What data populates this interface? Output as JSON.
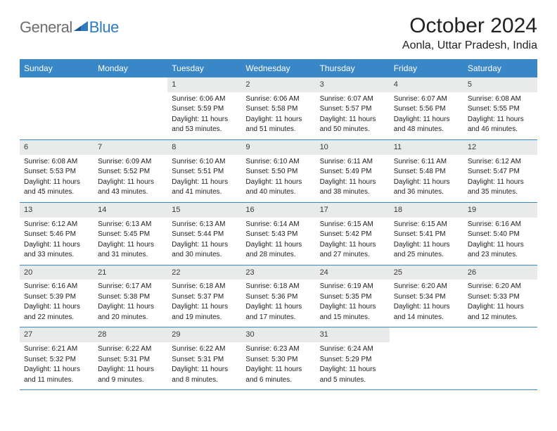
{
  "logo": {
    "text_general": "General",
    "text_blue": "Blue"
  },
  "title": "October 2024",
  "location": "Aonla, Uttar Pradesh, India",
  "colors": {
    "header_bar": "#3a87c8",
    "day_number_bg": "#e9eaea",
    "logo_gray": "#6d6e71",
    "logo_blue": "#2f7bbf",
    "text": "#222222",
    "background": "#ffffff"
  },
  "typography": {
    "title_fontsize": 30,
    "location_fontsize": 16,
    "weekday_fontsize": 12,
    "cell_fontsize": 10
  },
  "weekdays": [
    "Sunday",
    "Monday",
    "Tuesday",
    "Wednesday",
    "Thursday",
    "Friday",
    "Saturday"
  ],
  "weeks": [
    [
      null,
      null,
      {
        "n": "1",
        "sunrise": "Sunrise: 6:06 AM",
        "sunset": "Sunset: 5:59 PM",
        "day1": "Daylight: 11 hours",
        "day2": "and 53 minutes."
      },
      {
        "n": "2",
        "sunrise": "Sunrise: 6:06 AM",
        "sunset": "Sunset: 5:58 PM",
        "day1": "Daylight: 11 hours",
        "day2": "and 51 minutes."
      },
      {
        "n": "3",
        "sunrise": "Sunrise: 6:07 AM",
        "sunset": "Sunset: 5:57 PM",
        "day1": "Daylight: 11 hours",
        "day2": "and 50 minutes."
      },
      {
        "n": "4",
        "sunrise": "Sunrise: 6:07 AM",
        "sunset": "Sunset: 5:56 PM",
        "day1": "Daylight: 11 hours",
        "day2": "and 48 minutes."
      },
      {
        "n": "5",
        "sunrise": "Sunrise: 6:08 AM",
        "sunset": "Sunset: 5:55 PM",
        "day1": "Daylight: 11 hours",
        "day2": "and 46 minutes."
      }
    ],
    [
      {
        "n": "6",
        "sunrise": "Sunrise: 6:08 AM",
        "sunset": "Sunset: 5:53 PM",
        "day1": "Daylight: 11 hours",
        "day2": "and 45 minutes."
      },
      {
        "n": "7",
        "sunrise": "Sunrise: 6:09 AM",
        "sunset": "Sunset: 5:52 PM",
        "day1": "Daylight: 11 hours",
        "day2": "and 43 minutes."
      },
      {
        "n": "8",
        "sunrise": "Sunrise: 6:10 AM",
        "sunset": "Sunset: 5:51 PM",
        "day1": "Daylight: 11 hours",
        "day2": "and 41 minutes."
      },
      {
        "n": "9",
        "sunrise": "Sunrise: 6:10 AM",
        "sunset": "Sunset: 5:50 PM",
        "day1": "Daylight: 11 hours",
        "day2": "and 40 minutes."
      },
      {
        "n": "10",
        "sunrise": "Sunrise: 6:11 AM",
        "sunset": "Sunset: 5:49 PM",
        "day1": "Daylight: 11 hours",
        "day2": "and 38 minutes."
      },
      {
        "n": "11",
        "sunrise": "Sunrise: 6:11 AM",
        "sunset": "Sunset: 5:48 PM",
        "day1": "Daylight: 11 hours",
        "day2": "and 36 minutes."
      },
      {
        "n": "12",
        "sunrise": "Sunrise: 6:12 AM",
        "sunset": "Sunset: 5:47 PM",
        "day1": "Daylight: 11 hours",
        "day2": "and 35 minutes."
      }
    ],
    [
      {
        "n": "13",
        "sunrise": "Sunrise: 6:12 AM",
        "sunset": "Sunset: 5:46 PM",
        "day1": "Daylight: 11 hours",
        "day2": "and 33 minutes."
      },
      {
        "n": "14",
        "sunrise": "Sunrise: 6:13 AM",
        "sunset": "Sunset: 5:45 PM",
        "day1": "Daylight: 11 hours",
        "day2": "and 31 minutes."
      },
      {
        "n": "15",
        "sunrise": "Sunrise: 6:13 AM",
        "sunset": "Sunset: 5:44 PM",
        "day1": "Daylight: 11 hours",
        "day2": "and 30 minutes."
      },
      {
        "n": "16",
        "sunrise": "Sunrise: 6:14 AM",
        "sunset": "Sunset: 5:43 PM",
        "day1": "Daylight: 11 hours",
        "day2": "and 28 minutes."
      },
      {
        "n": "17",
        "sunrise": "Sunrise: 6:15 AM",
        "sunset": "Sunset: 5:42 PM",
        "day1": "Daylight: 11 hours",
        "day2": "and 27 minutes."
      },
      {
        "n": "18",
        "sunrise": "Sunrise: 6:15 AM",
        "sunset": "Sunset: 5:41 PM",
        "day1": "Daylight: 11 hours",
        "day2": "and 25 minutes."
      },
      {
        "n": "19",
        "sunrise": "Sunrise: 6:16 AM",
        "sunset": "Sunset: 5:40 PM",
        "day1": "Daylight: 11 hours",
        "day2": "and 23 minutes."
      }
    ],
    [
      {
        "n": "20",
        "sunrise": "Sunrise: 6:16 AM",
        "sunset": "Sunset: 5:39 PM",
        "day1": "Daylight: 11 hours",
        "day2": "and 22 minutes."
      },
      {
        "n": "21",
        "sunrise": "Sunrise: 6:17 AM",
        "sunset": "Sunset: 5:38 PM",
        "day1": "Daylight: 11 hours",
        "day2": "and 20 minutes."
      },
      {
        "n": "22",
        "sunrise": "Sunrise: 6:18 AM",
        "sunset": "Sunset: 5:37 PM",
        "day1": "Daylight: 11 hours",
        "day2": "and 19 minutes."
      },
      {
        "n": "23",
        "sunrise": "Sunrise: 6:18 AM",
        "sunset": "Sunset: 5:36 PM",
        "day1": "Daylight: 11 hours",
        "day2": "and 17 minutes."
      },
      {
        "n": "24",
        "sunrise": "Sunrise: 6:19 AM",
        "sunset": "Sunset: 5:35 PM",
        "day1": "Daylight: 11 hours",
        "day2": "and 15 minutes."
      },
      {
        "n": "25",
        "sunrise": "Sunrise: 6:20 AM",
        "sunset": "Sunset: 5:34 PM",
        "day1": "Daylight: 11 hours",
        "day2": "and 14 minutes."
      },
      {
        "n": "26",
        "sunrise": "Sunrise: 6:20 AM",
        "sunset": "Sunset: 5:33 PM",
        "day1": "Daylight: 11 hours",
        "day2": "and 12 minutes."
      }
    ],
    [
      {
        "n": "27",
        "sunrise": "Sunrise: 6:21 AM",
        "sunset": "Sunset: 5:32 PM",
        "day1": "Daylight: 11 hours",
        "day2": "and 11 minutes."
      },
      {
        "n": "28",
        "sunrise": "Sunrise: 6:22 AM",
        "sunset": "Sunset: 5:31 PM",
        "day1": "Daylight: 11 hours",
        "day2": "and 9 minutes."
      },
      {
        "n": "29",
        "sunrise": "Sunrise: 6:22 AM",
        "sunset": "Sunset: 5:31 PM",
        "day1": "Daylight: 11 hours",
        "day2": "and 8 minutes."
      },
      {
        "n": "30",
        "sunrise": "Sunrise: 6:23 AM",
        "sunset": "Sunset: 5:30 PM",
        "day1": "Daylight: 11 hours",
        "day2": "and 6 minutes."
      },
      {
        "n": "31",
        "sunrise": "Sunrise: 6:24 AM",
        "sunset": "Sunset: 5:29 PM",
        "day1": "Daylight: 11 hours",
        "day2": "and 5 minutes."
      },
      null,
      null
    ]
  ]
}
